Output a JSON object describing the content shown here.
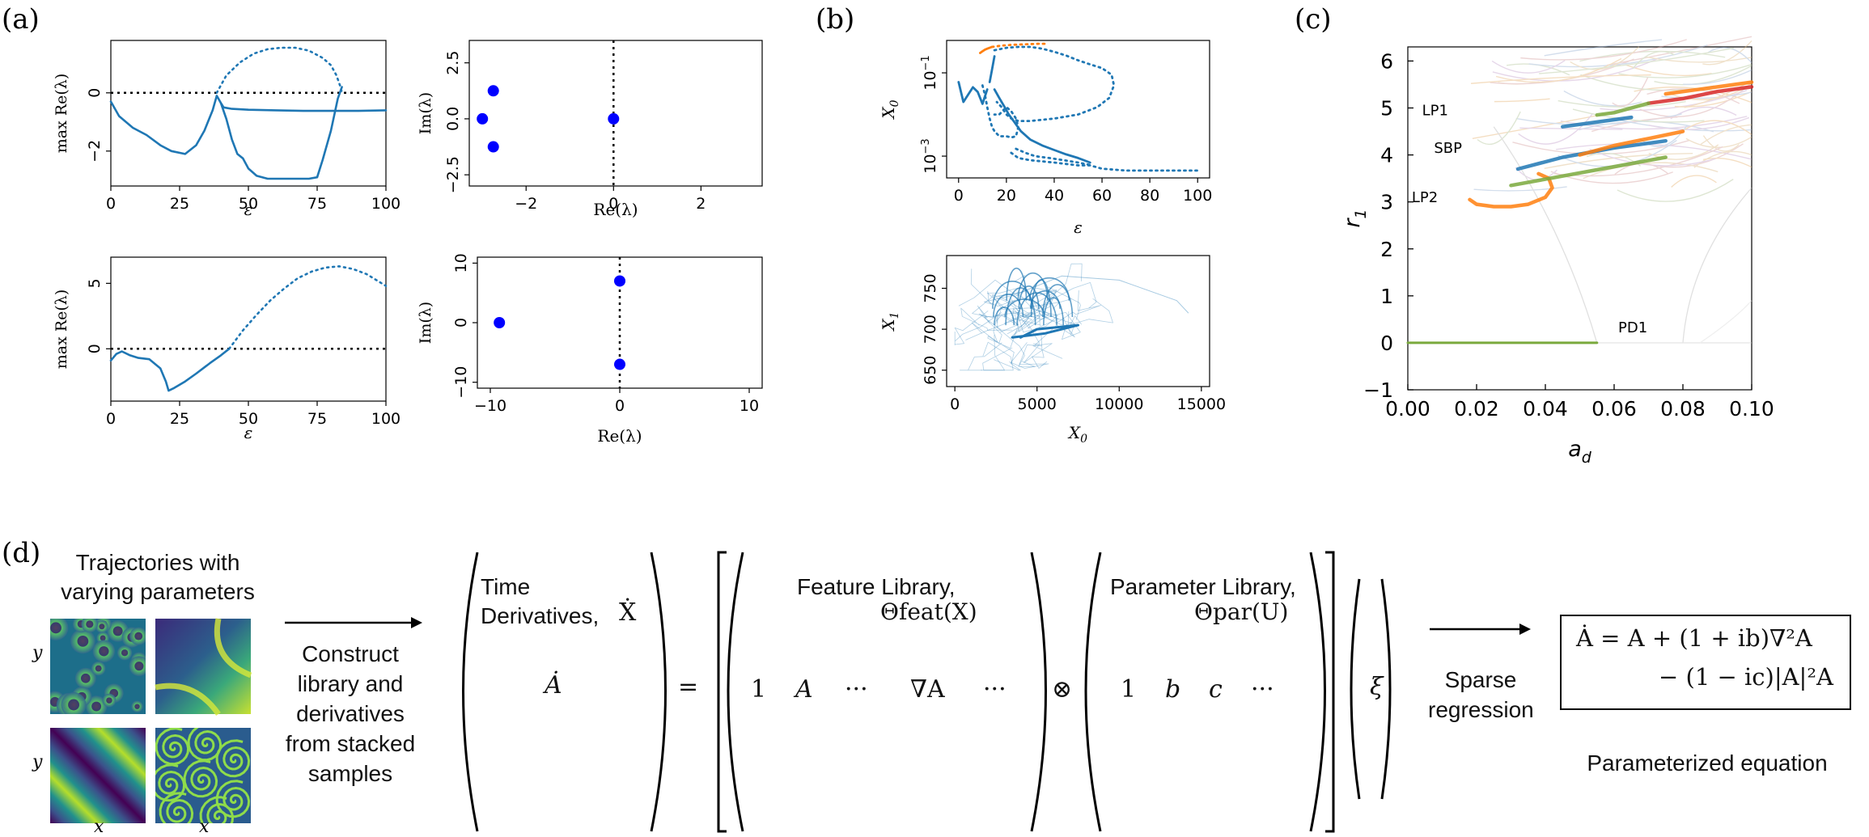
{
  "panel_labels": {
    "a": "(a)",
    "b": "(b)",
    "c": "(c)",
    "d": "(d)"
  },
  "colors": {
    "blue": "#1f77b4",
    "orange": "#ff7f0e",
    "eig": "#0000ff",
    "green": "#7aa93c"
  },
  "chart_data": [
    {
      "id": "a1",
      "type": "line",
      "xlabel": "ε",
      "ylabel": "max Re(λ)",
      "xlim": [
        0,
        100
      ],
      "ylim": [
        -3.2,
        1.8
      ],
      "xticks": [
        0,
        25,
        50,
        75,
        100
      ],
      "yticks": [
        -2,
        0
      ],
      "hline": 0,
      "series": [
        {
          "style": "solid",
          "x": [
            0,
            3,
            8,
            13,
            18,
            22,
            27,
            31,
            34,
            37,
            38.5,
            40,
            41,
            44,
            50,
            60,
            70,
            80,
            90,
            100
          ],
          "y": [
            -0.3,
            -0.8,
            -1.2,
            -1.45,
            -1.8,
            -2.0,
            -2.1,
            -1.8,
            -1.3,
            -0.6,
            -0.1,
            -0.35,
            -0.5,
            -0.55,
            -0.58,
            -0.6,
            -0.62,
            -0.62,
            -0.62,
            -0.6
          ]
        },
        {
          "style": "solid",
          "x": [
            40,
            42,
            44,
            46,
            48,
            50,
            53,
            57,
            62,
            67,
            72,
            75,
            77,
            80,
            82.5,
            84
          ],
          "y": [
            -0.35,
            -0.9,
            -1.6,
            -2.1,
            -2.25,
            -2.6,
            -2.85,
            -2.95,
            -2.95,
            -2.95,
            -2.95,
            -2.9,
            -2.3,
            -1.3,
            -0.2,
            0.2
          ]
        },
        {
          "style": "dotted",
          "x": [
            38.5,
            42,
            47,
            52,
            57,
            62,
            67,
            72,
            77,
            80,
            82,
            83.5,
            84
          ],
          "y": [
            0,
            0.6,
            1.05,
            1.35,
            1.5,
            1.55,
            1.55,
            1.45,
            1.2,
            0.95,
            0.6,
            0.2,
            0
          ]
        }
      ]
    },
    {
      "id": "a2",
      "type": "scatter",
      "xlabel": "Re(λ)",
      "ylabel": "Im(λ)",
      "xlim": [
        -3.3,
        3.4
      ],
      "ylim": [
        -3.0,
        3.5
      ],
      "xticks": [
        -2,
        0,
        2
      ],
      "yticks": [
        -2.5,
        0.0,
        2.5
      ],
      "vline": 0,
      "points": [
        {
          "x": -2.75,
          "y": 1.25
        },
        {
          "x": -3.0,
          "y": 0.0
        },
        {
          "x": -2.75,
          "y": -1.25
        },
        {
          "x": 0.0,
          "y": 0.0
        }
      ]
    },
    {
      "id": "a3",
      "type": "line",
      "xlabel": "ε",
      "ylabel": "max Re(λ)",
      "xlim": [
        0,
        100
      ],
      "ylim": [
        -4,
        7
      ],
      "xticks": [
        0,
        25,
        50,
        75,
        100
      ],
      "yticks": [
        0,
        5
      ],
      "hline": 0,
      "series": [
        {
          "style": "solid",
          "x": [
            0,
            2,
            4,
            7,
            10,
            14,
            18,
            20,
            21,
            23,
            27,
            31,
            36,
            40,
            43
          ],
          "y": [
            -0.9,
            -0.4,
            -0.2,
            -0.5,
            -0.7,
            -0.8,
            -1.5,
            -2.5,
            -3.2,
            -3.0,
            -2.5,
            -1.9,
            -1.1,
            -0.5,
            0
          ]
        },
        {
          "style": "dotted",
          "x": [
            43,
            48,
            53,
            58,
            63,
            68,
            73,
            78,
            83,
            88,
            93,
            100
          ],
          "y": [
            0,
            1.4,
            2.6,
            3.7,
            4.6,
            5.4,
            5.9,
            6.2,
            6.3,
            6.1,
            5.7,
            4.8
          ]
        }
      ]
    },
    {
      "id": "a4",
      "type": "scatter",
      "xlabel": "Re(λ)",
      "ylabel": "Im(λ)",
      "xlim": [
        -11,
        11
      ],
      "ylim": [
        -11,
        11
      ],
      "xticks": [
        -10,
        0,
        10
      ],
      "yticks": [
        -10,
        0,
        10
      ],
      "vline": 0,
      "points": [
        {
          "x": -9.3,
          "y": 0.0
        },
        {
          "x": 0.0,
          "y": 7.0
        },
        {
          "x": 0.0,
          "y": -7.0
        }
      ]
    },
    {
      "id": "b1",
      "type": "line",
      "yscale": "log",
      "xlabel": "ε",
      "ylabel": "X0",
      "xlim": [
        -5,
        105
      ],
      "ylim": [
        0.0003,
        0.6
      ],
      "xticks": [
        0,
        20,
        40,
        60,
        80,
        100
      ],
      "yticks": [
        "10^-1",
        "10^-3"
      ],
      "series": [
        {
          "style": "solid",
          "color": "blue",
          "x": [
            0,
            2,
            4,
            6,
            8,
            10,
            12
          ],
          "y": [
            0.06,
            0.02,
            0.03,
            0.045,
            0.035,
            0.018,
            0.04
          ]
        },
        {
          "style": "solid",
          "color": "blue",
          "x": [
            13,
            14,
            15
          ],
          "y": [
            0.06,
            0.12,
            0.25
          ]
        },
        {
          "style": "solid",
          "color": "blue",
          "x": [
            15,
            17,
            19,
            21,
            23,
            26,
            30,
            35,
            40,
            45,
            50,
            55
          ],
          "y": [
            0.04,
            0.025,
            0.016,
            0.01,
            0.007,
            0.004,
            0.0025,
            0.0018,
            0.0014,
            0.0011,
            0.0009,
            0.0007
          ]
        },
        {
          "style": "dotted",
          "color": "blue",
          "x": [
            10,
            11,
            12,
            13,
            14,
            15,
            17,
            20,
            22,
            24,
            25,
            24,
            22,
            20,
            17,
            15
          ],
          "y": [
            0.05,
            0.03,
            0.015,
            0.008,
            0.005,
            0.004,
            0.003,
            0.003,
            0.0028,
            0.003,
            0.005,
            0.008,
            0.012,
            0.015,
            0.01,
            0.01
          ]
        },
        {
          "style": "dotted",
          "color": "blue",
          "x": [
            15,
            20,
            25,
            30,
            35,
            40,
            45,
            50,
            55,
            60,
            64,
            65,
            63,
            58,
            50,
            40,
            30,
            25,
            22,
            20,
            18,
            16
          ],
          "y": [
            0.35,
            0.4,
            0.42,
            0.42,
            0.38,
            0.32,
            0.26,
            0.2,
            0.16,
            0.13,
            0.09,
            0.05,
            0.025,
            0.015,
            0.01,
            0.008,
            0.007,
            0.007,
            0.008,
            0.01,
            0.015,
            0.02
          ]
        },
        {
          "style": "dotted",
          "color": "blue",
          "x": [
            22,
            25,
            30,
            40,
            50,
            55,
            60,
            70,
            80,
            90,
            100
          ],
          "y": [
            0.0012,
            0.0009,
            0.0008,
            0.0007,
            0.0006,
            0.0006,
            0.0005,
            0.00045,
            0.00045,
            0.00045,
            0.00045
          ]
        },
        {
          "style": "dotted",
          "color": "blue",
          "x": [
            24,
            28,
            32,
            38,
            44,
            50,
            56
          ],
          "y": [
            0.0015,
            0.0012,
            0.001,
            0.0009,
            0.0008,
            0.0007,
            0.0006
          ]
        },
        {
          "style": "solid",
          "color": "orange",
          "x": [
            9,
            10,
            11,
            12,
            13,
            14
          ],
          "y": [
            0.3,
            0.33,
            0.36,
            0.38,
            0.4,
            0.42
          ]
        },
        {
          "style": "dotted",
          "color": "orange",
          "x": [
            14,
            18,
            22,
            26,
            30,
            34,
            37
          ],
          "y": [
            0.42,
            0.45,
            0.47,
            0.48,
            0.49,
            0.5,
            0.5
          ]
        }
      ]
    },
    {
      "id": "b2",
      "type": "line",
      "xlabel": "X0",
      "ylabel": "X1",
      "xlim": [
        -500,
        15500
      ],
      "ylim": [
        630,
        790
      ],
      "xticks": [
        0,
        5000,
        10000,
        15000
      ],
      "yticks": [
        650,
        700,
        750
      ]
    },
    {
      "id": "c",
      "type": "line",
      "xlabel": "a_d",
      "ylabel": "r_1",
      "xlim": [
        0.0,
        0.1
      ],
      "ylim": [
        -1,
        6.3
      ],
      "xticks": [
        0.0,
        0.02,
        0.04,
        0.06,
        0.08,
        0.1
      ],
      "xtick_labels": [
        "0.00",
        "0.02",
        "0.04",
        "0.06",
        "0.08",
        "0.10"
      ],
      "yticks": [
        -1,
        0,
        1,
        2,
        3,
        4,
        5,
        6
      ],
      "annotations": [
        {
          "text": "LP1",
          "x": 0.016,
          "y": 4.95
        },
        {
          "text": "SBP",
          "x": 0.02,
          "y": 4.15
        },
        {
          "text": "LP2",
          "x": 0.013,
          "y": 3.1
        },
        {
          "text": "PD1",
          "x": 0.056,
          "y": 0.33
        }
      ],
      "series": [
        {
          "color": "green",
          "x": [
            0.0,
            0.055
          ],
          "y": [
            0.0,
            0.0
          ]
        },
        {
          "color": "orange",
          "x": [
            0.018,
            0.02,
            0.025,
            0.03,
            0.035,
            0.04,
            0.042,
            0.041,
            0.038
          ],
          "y": [
            3.05,
            2.95,
            2.9,
            2.9,
            2.95,
            3.1,
            3.3,
            3.5,
            3.6
          ]
        },
        {
          "color": "blue",
          "x": [
            0.032,
            0.045,
            0.06,
            0.075
          ],
          "y": [
            3.7,
            3.95,
            4.15,
            4.3
          ]
        },
        {
          "color": "green",
          "x": [
            0.03,
            0.045,
            0.06,
            0.075
          ],
          "y": [
            3.35,
            3.55,
            3.75,
            3.95
          ]
        },
        {
          "color": "orange",
          "x": [
            0.05,
            0.06,
            0.07,
            0.08
          ],
          "y": [
            4.0,
            4.2,
            4.35,
            4.5
          ]
        },
        {
          "color": "red",
          "x": [
            0.07,
            0.08,
            0.09,
            0.1
          ],
          "y": [
            5.1,
            5.2,
            5.35,
            5.45
          ]
        },
        {
          "color": "orange",
          "x": [
            0.075,
            0.085,
            0.095,
            0.1
          ],
          "y": [
            5.3,
            5.4,
            5.5,
            5.55
          ]
        },
        {
          "color": "green",
          "x": [
            0.055,
            0.06,
            0.065,
            0.07
          ],
          "y": [
            4.85,
            4.9,
            5.0,
            5.1
          ]
        },
        {
          "color": "blue",
          "x": [
            0.045,
            0.055,
            0.065
          ],
          "y": [
            4.6,
            4.7,
            4.8
          ]
        }
      ]
    }
  ],
  "panel_d": {
    "traj_caption": "Trajectories with varying parameters",
    "axis_y": "y",
    "axis_x": "x",
    "construct_text": "Construct library and derivatives from stacked samples",
    "time_deriv_label": "Time Derivatives,",
    "time_deriv_sym": "Ẋ",
    "adot": "Ȧ",
    "equals": "=",
    "feature_label": "Feature Library,",
    "feature_sym": "Θfeat(X)",
    "feature_terms": [
      "1",
      "A",
      "···",
      "∇A",
      "···"
    ],
    "kron": "⊗",
    "param_label": "Parameter Library,",
    "param_sym": "Θpar(U)",
    "param_terms": [
      "1",
      "b",
      "c",
      "···"
    ],
    "xi": "ξ",
    "sparse_text": "Sparse regression",
    "eq_line1": "Ȧ = A + (1 + ib)∇²A",
    "eq_line2": "− (1 − ic)|A|²A",
    "param_eq_text": "Parameterized equation"
  }
}
